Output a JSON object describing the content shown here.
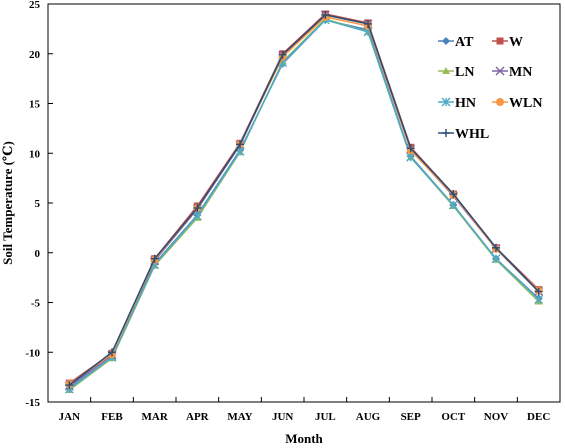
{
  "chart_data": {
    "type": "line",
    "xlabel": "Month",
    "ylabel": "Soil Temperature (℃)",
    "categories": [
      "JAN",
      "FEB",
      "MAR",
      "APR",
      "MAY",
      "JUN",
      "JUL",
      "AUG",
      "SEP",
      "OCT",
      "NOV",
      "DEC"
    ],
    "ylim": [
      -15,
      25
    ],
    "yticks": [
      -15,
      -10,
      -5,
      0,
      5,
      10,
      15,
      20,
      25
    ],
    "grid": false,
    "legend_position": "top-right",
    "series": [
      {
        "name": "AT",
        "color": "#4f81bd",
        "marker": "diamond",
        "values": [
          -13.6,
          -10.5,
          -1.1,
          3.8,
          10.3,
          19.0,
          23.4,
          22.4,
          9.7,
          4.8,
          -0.6,
          -4.6
        ]
      },
      {
        "name": "W",
        "color": "#c0504d",
        "marker": "square",
        "values": [
          -13.1,
          -10.1,
          -0.6,
          4.7,
          11.0,
          20.0,
          24.0,
          23.1,
          10.6,
          5.9,
          0.5,
          -3.7
        ]
      },
      {
        "name": "LN",
        "color": "#9bbb59",
        "marker": "triangle",
        "values": [
          -13.8,
          -10.6,
          -1.3,
          3.5,
          10.1,
          19.2,
          23.5,
          22.2,
          9.6,
          4.7,
          -0.7,
          -4.9
        ]
      },
      {
        "name": "MN",
        "color": "#8064a2",
        "marker": "x",
        "values": [
          -13.4,
          -10.3,
          -0.8,
          4.4,
          10.8,
          19.8,
          23.9,
          23.0,
          10.4,
          5.7,
          0.4,
          -3.9
        ]
      },
      {
        "name": "HN",
        "color": "#4bacc6",
        "marker": "star",
        "values": [
          -13.7,
          -10.5,
          -1.2,
          3.7,
          10.2,
          19.1,
          23.4,
          22.2,
          9.6,
          4.8,
          -0.6,
          -4.7
        ]
      },
      {
        "name": "WLN",
        "color": "#f79646",
        "marker": "circle",
        "values": [
          -13.2,
          -10.2,
          -0.7,
          4.5,
          10.9,
          19.7,
          23.7,
          22.8,
          10.3,
          5.8,
          0.4,
          -3.8
        ]
      },
      {
        "name": "WHL",
        "color": "#2c4d75",
        "marker": "plus",
        "values": [
          -13.3,
          -10.0,
          -0.6,
          4.5,
          10.9,
          19.9,
          23.9,
          23.0,
          10.5,
          5.9,
          0.5,
          -3.9
        ]
      }
    ]
  }
}
